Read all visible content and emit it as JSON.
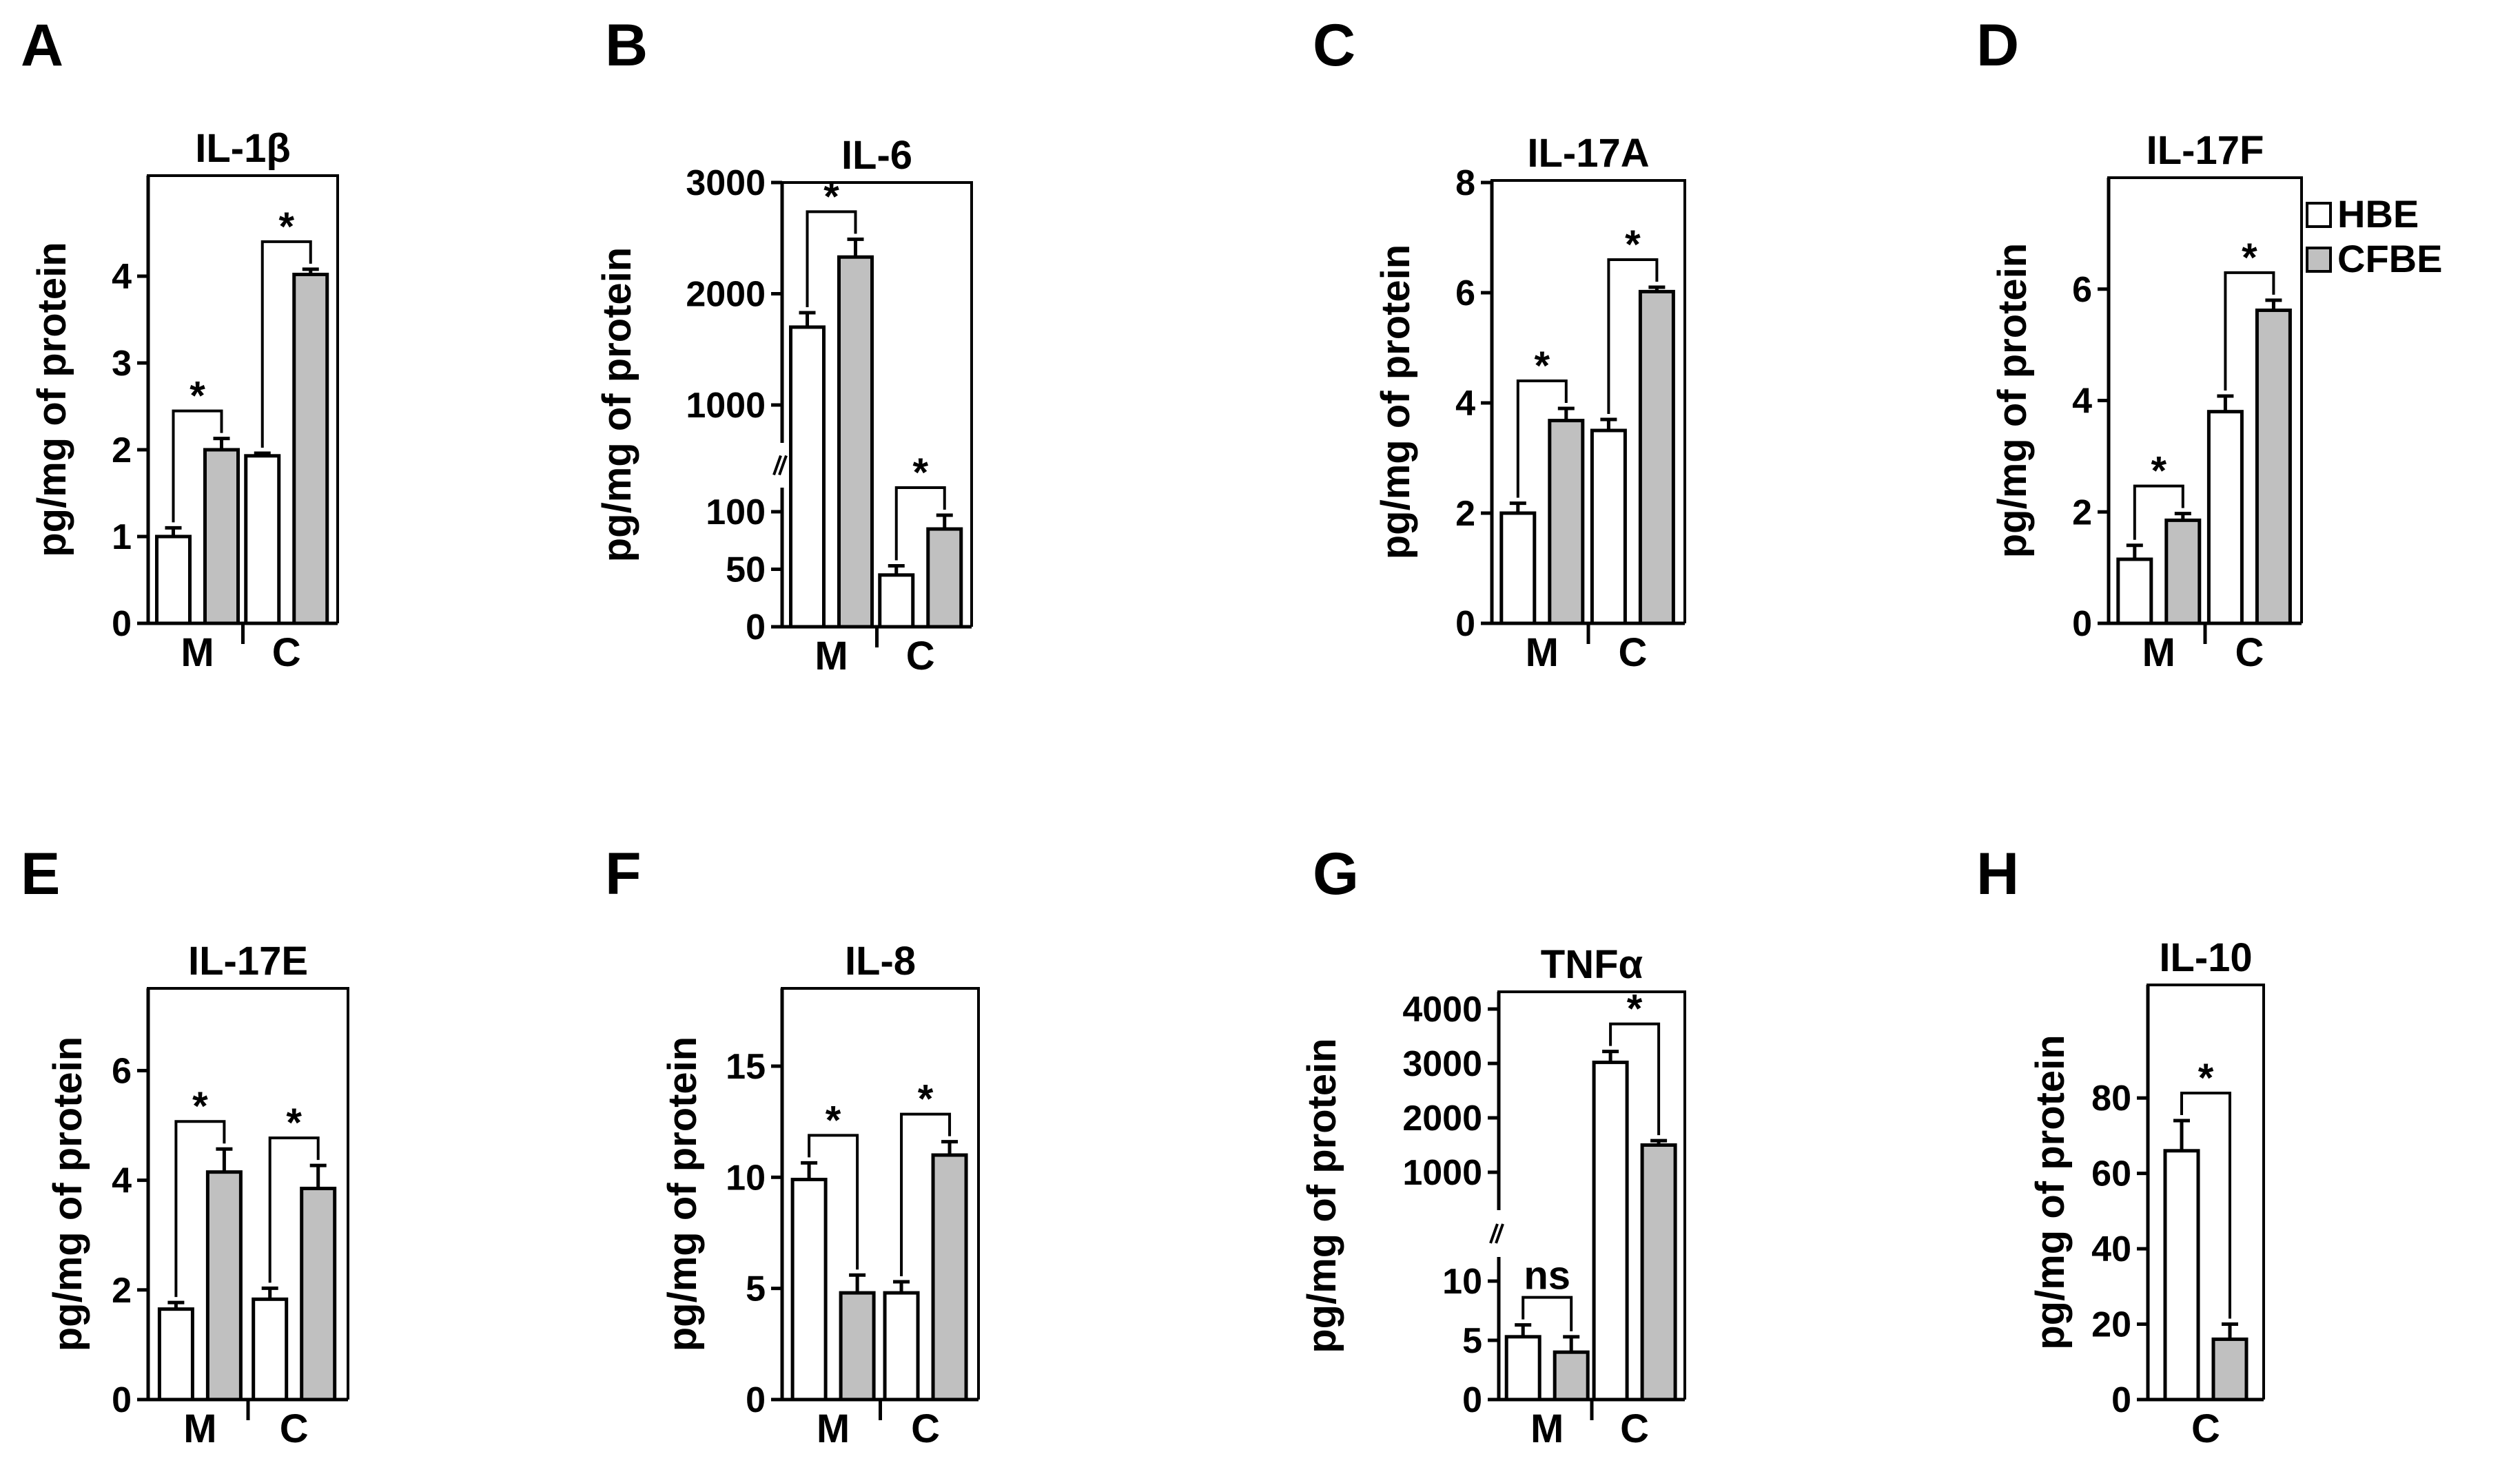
{
  "legend": {
    "items": [
      {
        "label": "HBE",
        "color": "#ffffff"
      },
      {
        "label": "CFBE",
        "color": "#c0c0c0"
      }
    ]
  },
  "chart_data": [
    {
      "id": "A",
      "panel_label": "A",
      "type": "bar",
      "title": "IL-1β",
      "ylabel": "pg/mg of protein",
      "groups": [
        "M",
        "C"
      ],
      "ylim": [
        0,
        5
      ],
      "yticks": [
        0,
        1,
        2,
        3,
        4
      ],
      "ytick_labels": [
        "0",
        "1",
        "2",
        "3",
        "4"
      ],
      "series": [
        {
          "name": "HBE",
          "values": [
            1.0,
            1.93
          ],
          "errors": [
            0.1,
            0.03
          ]
        },
        {
          "name": "CFBE",
          "values": [
            2.0,
            4.02
          ],
          "errors": [
            0.13,
            0.06
          ]
        }
      ],
      "significance": [
        {
          "group": "M",
          "label": "*"
        },
        {
          "group": "C",
          "label": "*"
        }
      ]
    },
    {
      "id": "B",
      "panel_label": "B",
      "type": "bar",
      "title": "IL-6",
      "ylabel": "pg/mg of protein",
      "groups": [
        "M",
        "C"
      ],
      "ylim": [
        0,
        3000
      ],
      "broken_axis": {
        "lower": [
          0,
          100
        ],
        "upper": [
          1000,
          3000
        ]
      },
      "yticks": [
        0,
        50,
        100,
        1000,
        2000,
        3000
      ],
      "ytick_labels": [
        "0",
        "50",
        "100",
        "1000",
        "2000",
        "3000"
      ],
      "series": [
        {
          "name": "HBE",
          "values": [
            1700,
            45
          ],
          "errors": [
            130,
            8
          ]
        },
        {
          "name": "CFBE",
          "values": [
            2330,
            85
          ],
          "errors": [
            160,
            12
          ]
        }
      ],
      "significance": [
        {
          "group": "M",
          "label": "*"
        },
        {
          "group": "C",
          "label": "*"
        }
      ]
    },
    {
      "id": "C",
      "panel_label": "C",
      "type": "bar",
      "title": "IL-17A",
      "ylabel": "pg/mg of protein",
      "groups": [
        "M",
        "C"
      ],
      "ylim": [
        0,
        8
      ],
      "yticks": [
        0,
        2,
        4,
        6,
        8
      ],
      "ytick_labels": [
        "0",
        "2",
        "4",
        "6",
        "8"
      ],
      "series": [
        {
          "name": "HBE",
          "values": [
            2.0,
            3.5
          ],
          "errors": [
            0.18,
            0.2
          ]
        },
        {
          "name": "CFBE",
          "values": [
            3.68,
            6.02
          ],
          "errors": [
            0.22,
            0.08
          ]
        }
      ],
      "significance": [
        {
          "group": "M",
          "label": "*"
        },
        {
          "group": "C",
          "label": "*"
        }
      ]
    },
    {
      "id": "D",
      "panel_label": "D",
      "type": "bar",
      "title": "IL-17F",
      "ylabel": "pg/mg of protein",
      "groups": [
        "M",
        "C"
      ],
      "ylim": [
        0,
        8
      ],
      "yticks": [
        0,
        2,
        4,
        6
      ],
      "ytick_labels": [
        "0",
        "2",
        "4",
        "6"
      ],
      "series": [
        {
          "name": "HBE",
          "values": [
            1.15,
            3.8
          ],
          "errors": [
            0.25,
            0.28
          ]
        },
        {
          "name": "CFBE",
          "values": [
            1.85,
            5.62
          ],
          "errors": [
            0.12,
            0.18
          ]
        }
      ],
      "significance": [
        {
          "group": "M",
          "label": "*"
        },
        {
          "group": "C",
          "label": "*"
        }
      ]
    },
    {
      "id": "E",
      "panel_label": "E",
      "type": "bar",
      "title": "IL-17E",
      "ylabel": "pg/mg of protein",
      "groups": [
        "M",
        "C"
      ],
      "ylim": [
        0,
        7.5
      ],
      "yticks": [
        0,
        2,
        4,
        6
      ],
      "ytick_labels": [
        "0",
        "2",
        "4",
        "6"
      ],
      "series": [
        {
          "name": "HBE",
          "values": [
            1.65,
            1.83
          ],
          "errors": [
            0.12,
            0.2
          ]
        },
        {
          "name": "CFBE",
          "values": [
            4.15,
            3.85
          ],
          "errors": [
            0.42,
            0.42
          ]
        }
      ],
      "significance": [
        {
          "group": "M",
          "label": "*"
        },
        {
          "group": "C",
          "label": "*"
        }
      ]
    },
    {
      "id": "F",
      "panel_label": "F",
      "type": "bar",
      "title": "IL-8",
      "ylabel": "pg/mg of protein",
      "groups": [
        "M",
        "C"
      ],
      "ylim": [
        0,
        18.5
      ],
      "yticks": [
        0,
        5,
        10,
        15
      ],
      "ytick_labels": [
        "0",
        "5",
        "10",
        "15"
      ],
      "series": [
        {
          "name": "HBE",
          "values": [
            9.9,
            4.8
          ],
          "errors": [
            0.75,
            0.5
          ]
        },
        {
          "name": "CFBE",
          "values": [
            4.8,
            11.0
          ],
          "errors": [
            0.8,
            0.6
          ]
        }
      ],
      "significance": [
        {
          "group": "M",
          "label": "*"
        },
        {
          "group": "C",
          "label": "*"
        }
      ]
    },
    {
      "id": "G",
      "panel_label": "G",
      "type": "bar",
      "title": "TNFα",
      "ylabel": "pg/mg of protein",
      "groups": [
        "M",
        "C"
      ],
      "ylim": [
        0,
        4000
      ],
      "broken_axis": {
        "lower": [
          0,
          10
        ],
        "upper": [
          1000,
          4000
        ]
      },
      "yticks": [
        0,
        5,
        10,
        1000,
        2000,
        3000,
        4000
      ],
      "ytick_labels": [
        "0",
        "5",
        "10",
        "1000",
        "2000",
        "3000",
        "4000"
      ],
      "series": [
        {
          "name": "HBE",
          "values": [
            5.3,
            3020
          ],
          "errors": [
            1.0,
            200
          ]
        },
        {
          "name": "CFBE",
          "values": [
            4.0,
            1500
          ],
          "errors": [
            1.3,
            80
          ]
        }
      ],
      "significance": [
        {
          "group": "M",
          "label": "ns"
        },
        {
          "group": "C",
          "label": "*"
        }
      ]
    },
    {
      "id": "H",
      "panel_label": "H",
      "type": "bar",
      "title": "IL-10",
      "ylabel": "pg/mg of protein",
      "groups": [
        "C"
      ],
      "ylim": [
        0,
        110
      ],
      "yticks": [
        0,
        20,
        40,
        60,
        80
      ],
      "ytick_labels": [
        "0",
        "20",
        "40",
        "60",
        "80"
      ],
      "series": [
        {
          "name": "HBE",
          "values": [
            66
          ],
          "errors": [
            8
          ]
        },
        {
          "name": "CFBE",
          "values": [
            16
          ],
          "errors": [
            4
          ]
        }
      ],
      "significance": [
        {
          "group": "C",
          "label": "*"
        }
      ]
    }
  ]
}
